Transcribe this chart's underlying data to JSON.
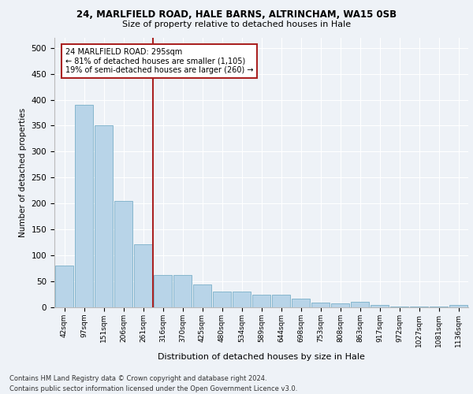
{
  "title_line1": "24, MARLFIELD ROAD, HALE BARNS, ALTRINCHAM, WA15 0SB",
  "title_line2": "Size of property relative to detached houses in Hale",
  "xlabel": "Distribution of detached houses by size in Hale",
  "ylabel": "Number of detached properties",
  "categories": [
    "42sqm",
    "97sqm",
    "151sqm",
    "206sqm",
    "261sqm",
    "316sqm",
    "370sqm",
    "425sqm",
    "480sqm",
    "534sqm",
    "589sqm",
    "644sqm",
    "698sqm",
    "753sqm",
    "808sqm",
    "863sqm",
    "917sqm",
    "972sqm",
    "1027sqm",
    "1081sqm",
    "1136sqm"
  ],
  "values": [
    80,
    390,
    350,
    205,
    122,
    63,
    63,
    44,
    30,
    30,
    25,
    25,
    16,
    9,
    7,
    10,
    5,
    2,
    2,
    1,
    4
  ],
  "bar_color": "#b8d4e8",
  "bar_edge_color": "#7aafc8",
  "vline_color": "#aa2222",
  "annotation_text": "24 MARLFIELD ROAD: 295sqm\n← 81% of detached houses are smaller (1,105)\n19% of semi-detached houses are larger (260) →",
  "annotation_box_color": "#ffffff",
  "annotation_box_edge": "#aa2222",
  "ylim": [
    0,
    520
  ],
  "yticks": [
    0,
    50,
    100,
    150,
    200,
    250,
    300,
    350,
    400,
    450,
    500
  ],
  "footer1": "Contains HM Land Registry data © Crown copyright and database right 2024.",
  "footer2": "Contains public sector information licensed under the Open Government Licence v3.0.",
  "bg_color": "#eef2f7",
  "plot_bg_color": "#eef2f7"
}
